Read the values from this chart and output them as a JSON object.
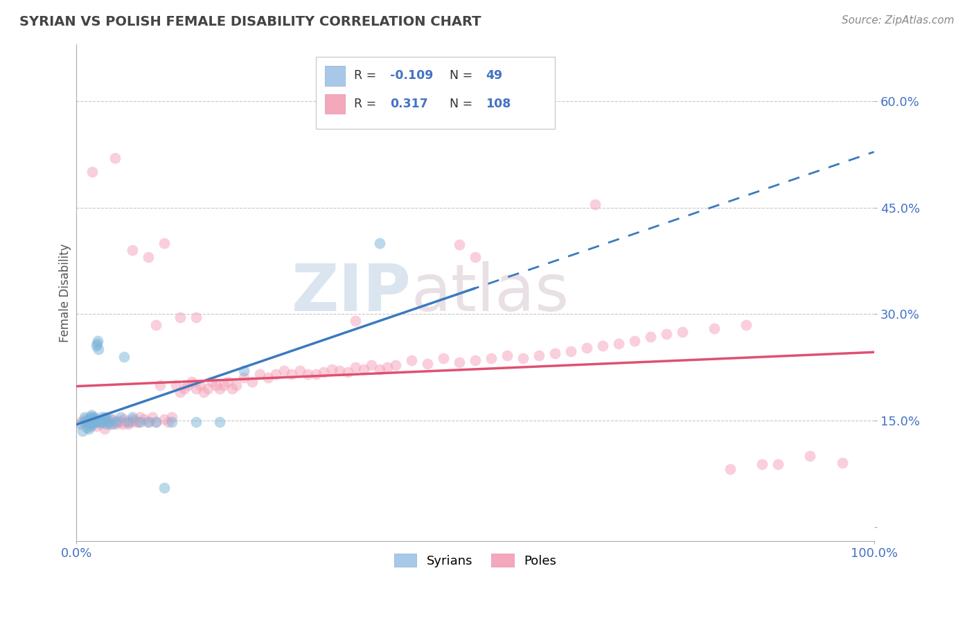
{
  "title": "SYRIAN VS POLISH FEMALE DISABILITY CORRELATION CHART",
  "source": "Source: ZipAtlas.com",
  "ylabel": "Female Disability",
  "xlim": [
    0.0,
    1.0
  ],
  "ylim": [
    -0.02,
    0.68
  ],
  "yticks": [
    0.0,
    0.15,
    0.3,
    0.45,
    0.6
  ],
  "ytick_labels": [
    "",
    "15.0%",
    "30.0%",
    "45.0%",
    "60.0%"
  ],
  "xtick_labels": [
    "0.0%",
    "100.0%"
  ],
  "gridline_color": "#c8c8c8",
  "background_color": "#ffffff",
  "syrian_color": "#7ab3d9",
  "polish_color": "#f4a0b8",
  "syrian_line_color": "#3a7abf",
  "polish_line_color": "#e05070",
  "legend_label_syrian": "Syrians",
  "legend_label_polish": "Poles",
  "watermark_zip": "ZIP",
  "watermark_atlas": "atlas",
  "syrian_R": -0.109,
  "syrian_N": 49,
  "polish_R": 0.317,
  "polish_N": 108,
  "syrians_x": [
    0.005,
    0.008,
    0.01,
    0.01,
    0.012,
    0.013,
    0.015,
    0.015,
    0.016,
    0.017,
    0.018,
    0.018,
    0.019,
    0.02,
    0.02,
    0.021,
    0.022,
    0.022,
    0.023,
    0.023,
    0.024,
    0.025,
    0.026,
    0.027,
    0.028,
    0.029,
    0.03,
    0.032,
    0.033,
    0.035,
    0.036,
    0.038,
    0.04,
    0.042,
    0.045,
    0.05,
    0.055,
    0.06,
    0.065,
    0.07,
    0.08,
    0.09,
    0.1,
    0.11,
    0.12,
    0.15,
    0.18,
    0.21,
    0.38
  ],
  "syrians_y": [
    0.145,
    0.135,
    0.148,
    0.155,
    0.15,
    0.14,
    0.138,
    0.152,
    0.148,
    0.155,
    0.15,
    0.142,
    0.158,
    0.145,
    0.155,
    0.148,
    0.155,
    0.15,
    0.148,
    0.152,
    0.148,
    0.255,
    0.258,
    0.262,
    0.25,
    0.148,
    0.148,
    0.155,
    0.148,
    0.152,
    0.155,
    0.145,
    0.148,
    0.152,
    0.145,
    0.148,
    0.155,
    0.24,
    0.148,
    0.155,
    0.148,
    0.148,
    0.148,
    0.055,
    0.148,
    0.148,
    0.148,
    0.22,
    0.4
  ],
  "poles_x": [
    0.005,
    0.01,
    0.015,
    0.02,
    0.025,
    0.028,
    0.03,
    0.032,
    0.035,
    0.038,
    0.04,
    0.042,
    0.045,
    0.048,
    0.05,
    0.053,
    0.055,
    0.058,
    0.06,
    0.063,
    0.065,
    0.068,
    0.07,
    0.073,
    0.075,
    0.078,
    0.08,
    0.085,
    0.09,
    0.095,
    0.1,
    0.105,
    0.11,
    0.115,
    0.12,
    0.125,
    0.13,
    0.135,
    0.14,
    0.145,
    0.15,
    0.155,
    0.16,
    0.165,
    0.17,
    0.175,
    0.18,
    0.185,
    0.19,
    0.195,
    0.2,
    0.21,
    0.22,
    0.23,
    0.24,
    0.25,
    0.26,
    0.27,
    0.28,
    0.29,
    0.3,
    0.31,
    0.32,
    0.33,
    0.34,
    0.35,
    0.36,
    0.37,
    0.38,
    0.39,
    0.4,
    0.42,
    0.44,
    0.46,
    0.48,
    0.5,
    0.52,
    0.54,
    0.56,
    0.58,
    0.6,
    0.62,
    0.64,
    0.66,
    0.68,
    0.7,
    0.72,
    0.74,
    0.76,
    0.8,
    0.84,
    0.88,
    0.92,
    0.96,
    0.82,
    0.86,
    0.1,
    0.35,
    0.5,
    0.65,
    0.48,
    0.02,
    0.048,
    0.07,
    0.09,
    0.11,
    0.13,
    0.15
  ],
  "poles_y": [
    0.148,
    0.152,
    0.145,
    0.148,
    0.142,
    0.15,
    0.145,
    0.148,
    0.138,
    0.152,
    0.148,
    0.145,
    0.152,
    0.148,
    0.145,
    0.15,
    0.148,
    0.145,
    0.152,
    0.148,
    0.145,
    0.148,
    0.152,
    0.15,
    0.148,
    0.148,
    0.155,
    0.152,
    0.148,
    0.155,
    0.148,
    0.2,
    0.152,
    0.148,
    0.155,
    0.2,
    0.19,
    0.195,
    0.2,
    0.205,
    0.195,
    0.2,
    0.19,
    0.195,
    0.205,
    0.2,
    0.195,
    0.2,
    0.205,
    0.195,
    0.2,
    0.21,
    0.205,
    0.215,
    0.21,
    0.215,
    0.22,
    0.215,
    0.22,
    0.215,
    0.215,
    0.218,
    0.222,
    0.22,
    0.218,
    0.225,
    0.222,
    0.228,
    0.222,
    0.225,
    0.228,
    0.235,
    0.23,
    0.238,
    0.232,
    0.235,
    0.238,
    0.242,
    0.238,
    0.242,
    0.245,
    0.248,
    0.252,
    0.255,
    0.258,
    0.262,
    0.268,
    0.272,
    0.275,
    0.28,
    0.285,
    0.088,
    0.1,
    0.09,
    0.082,
    0.088,
    0.285,
    0.29,
    0.38,
    0.455,
    0.398,
    0.5,
    0.52,
    0.39,
    0.38,
    0.4,
    0.295,
    0.295
  ]
}
